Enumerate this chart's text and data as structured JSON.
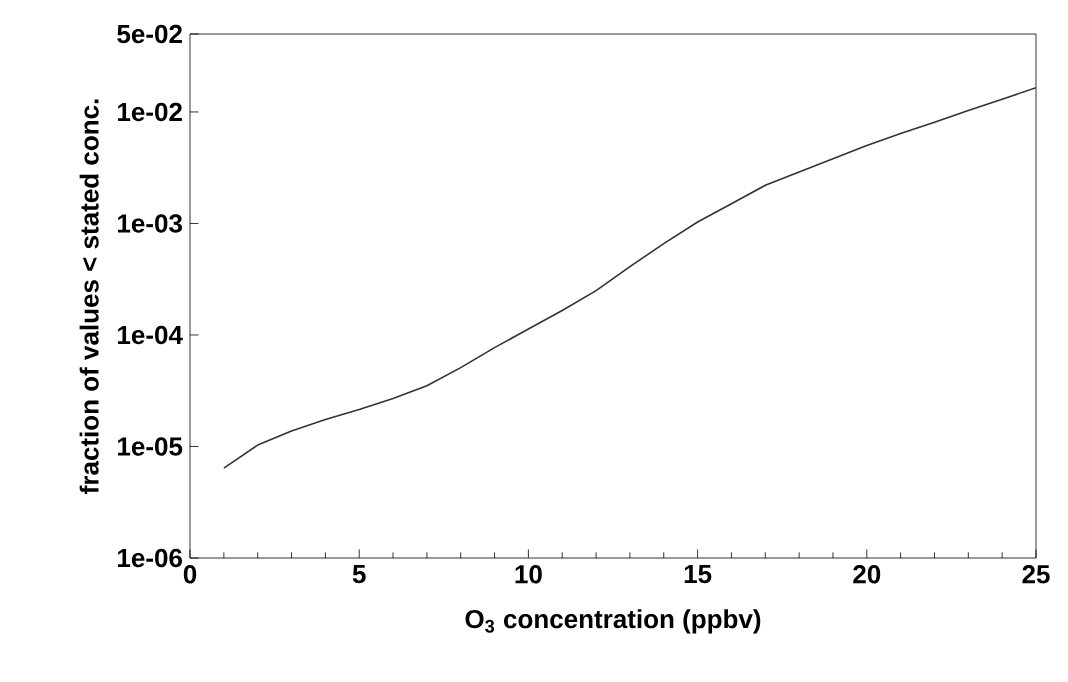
{
  "chart_data": {
    "type": "line",
    "xlabel": "O$_{3}$ concentration (ppbv)",
    "ylabel": "fraction of values < stated conc.",
    "log": "y",
    "grid": false,
    "marker": "none",
    "line_style": "solid",
    "xlim": [
      0,
      25
    ],
    "xticks": [
      0,
      5,
      10,
      15,
      20,
      25
    ],
    "ylim": [
      1e-06,
      0.05
    ],
    "yticks": [
      {
        "value": 1e-06,
        "label": "1e-06"
      },
      {
        "value": 1e-05,
        "label": "1e-05"
      },
      {
        "value": 0.0001,
        "label": "1e-04"
      },
      {
        "value": 0.001,
        "label": "1e-03"
      },
      {
        "value": 0.01,
        "label": "1e-02"
      },
      {
        "value": 0.05,
        "label": "5e-02"
      }
    ],
    "x": [
      1,
      2,
      3,
      4,
      5,
      6,
      7,
      8,
      9,
      10,
      11,
      12,
      13,
      14,
      15,
      16,
      17,
      18,
      19,
      20,
      21,
      22,
      23,
      24,
      25
    ],
    "series": [
      {
        "color": "#333333",
        "values": [
          6.4e-06,
          1.03e-05,
          1.38e-05,
          1.75e-05,
          2.15e-05,
          2.7e-05,
          3.5e-05,
          5.1e-05,
          7.7e-05,
          0.000113,
          0.000166,
          0.00025,
          0.00041,
          0.00066,
          0.00103,
          0.0015,
          0.0022,
          0.0029,
          0.0038,
          0.005,
          0.0064,
          0.0081,
          0.0103,
          0.013,
          0.0165
        ]
      }
    ]
  }
}
